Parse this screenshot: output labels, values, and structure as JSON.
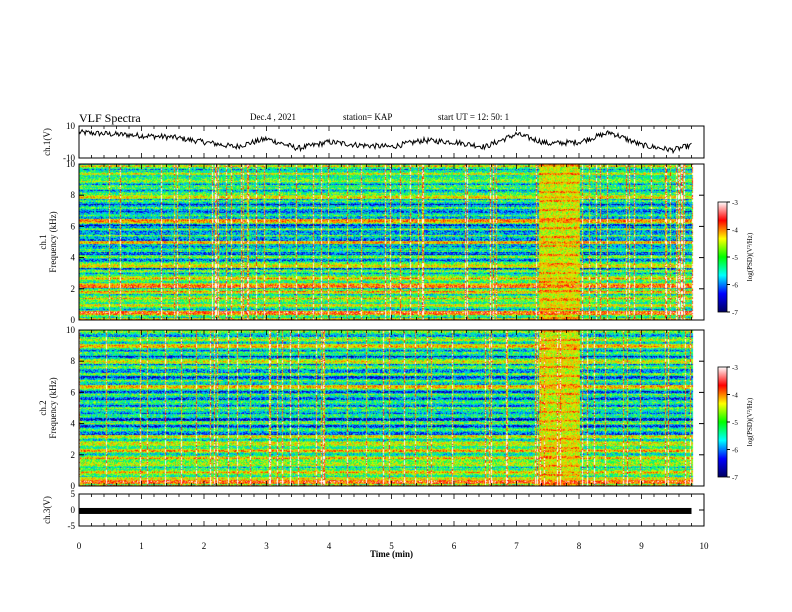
{
  "header": {
    "title": "VLF Spectra",
    "date": "Dec.4 , 2021",
    "station": "station= KAP",
    "start_ut": "start UT = 12: 50: 1"
  },
  "panels": {
    "ch1_wave_label": "ch.1(V)",
    "ch1_spec_label_top": "ch.1",
    "ch1_spec_label_bottom": "Frequency (kHz)",
    "ch2_spec_label_top": "ch.2",
    "ch2_spec_label_bottom": "Frequency (kHz)",
    "ch3_wave_label": "ch.3(V)"
  },
  "colorbar": {
    "label": "log(PSD)(V²/Hz)",
    "ticks": [
      "-3",
      "-4",
      "-5",
      "-6",
      "-7"
    ],
    "colors": [
      "#ffffff",
      "#ff0000",
      "#ffff00",
      "#00ff00",
      "#00ffff",
      "#0000ff",
      "#000060"
    ]
  },
  "chart_data": [
    {
      "type": "line",
      "name": "ch.1 waveform",
      "ylabel": "ch.1(V)",
      "ylim": [
        -10,
        10
      ],
      "yticks": [
        "10",
        "-10"
      ],
      "xlim": [
        0,
        10
      ],
      "x": [
        0,
        0.5,
        1,
        1.5,
        2,
        2.5,
        3,
        3.5,
        4,
        4.5,
        5,
        5.5,
        6,
        6.5,
        7,
        7.5,
        8,
        8.5,
        9,
        9.5,
        9.8
      ],
      "values": [
        6,
        5,
        4,
        3,
        0,
        -3,
        2,
        -4,
        0,
        -2,
        -3,
        1,
        0,
        -3,
        5,
        -1,
        0,
        6,
        -2,
        -5,
        -2
      ]
    },
    {
      "type": "heatmap",
      "name": "ch.1 spectrogram",
      "ylabel": "Frequency (kHz)",
      "ylim": [
        0,
        10
      ],
      "yticks": [
        "10",
        "8",
        "6",
        "4",
        "2",
        "0"
      ],
      "xlim": [
        0,
        10
      ],
      "zlabel": "log(PSD)(V²/Hz)",
      "zlim": [
        -7,
        -3
      ],
      "bands_khz": [
        {
          "f": 0.5,
          "level": -3.5
        },
        {
          "f": 1.8,
          "level": -4.5
        },
        {
          "f": 2.2,
          "level": -3.6
        },
        {
          "f": 3.5,
          "level": -4.2
        },
        {
          "f": 5.0,
          "level": -4.0
        },
        {
          "f": 6.4,
          "level": -3.8
        },
        {
          "f": 7.9,
          "level": -4.2
        }
      ],
      "event": {
        "t_start": 7.35,
        "t_end": 8.0,
        "level": -3.5
      }
    },
    {
      "type": "heatmap",
      "name": "ch.2 spectrogram",
      "ylabel": "Frequency (kHz)",
      "ylim": [
        0,
        10
      ],
      "yticks": [
        "10",
        "8",
        "6",
        "4",
        "2",
        "0"
      ],
      "xlim": [
        0,
        10
      ],
      "zlabel": "log(PSD)(V²/Hz)",
      "zlim": [
        -7,
        -3
      ],
      "bands_khz": [
        {
          "f": 0.3,
          "level": -3.5
        },
        {
          "f": 1.5,
          "level": -4.6
        },
        {
          "f": 3.2,
          "level": -4.3
        },
        {
          "f": 6.4,
          "level": -4.0
        },
        {
          "f": 8.0,
          "level": -4.3
        },
        {
          "f": 9.0,
          "level": -4.0
        }
      ],
      "event": {
        "t_start": 7.35,
        "t_end": 8.0,
        "level": -3.5
      }
    },
    {
      "type": "line",
      "name": "ch.3 waveform",
      "ylabel": "ch.3(V)",
      "ylim": [
        -5,
        5
      ],
      "yticks": [
        "5",
        "0",
        "-5"
      ],
      "xlim": [
        0,
        10
      ],
      "x": [
        0,
        9.8
      ],
      "values": [
        -0.3,
        -0.3
      ]
    }
  ],
  "xaxis": {
    "label": "Time (min)",
    "ticks": [
      "0",
      "1",
      "2",
      "3",
      "4",
      "5",
      "6",
      "7",
      "8",
      "9",
      "10"
    ]
  }
}
